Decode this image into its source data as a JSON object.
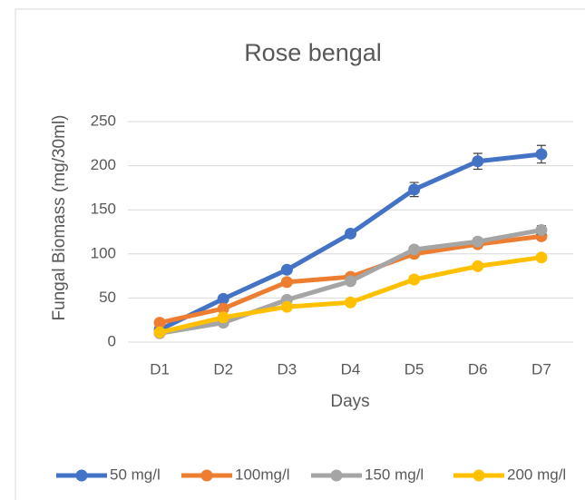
{
  "chart_data": {
    "type": "line",
    "title": "Rose bengal",
    "x_label": "Days",
    "y_label": "Fungal Biomass (mg/30ml)",
    "categories": [
      "D1",
      "D2",
      "D3",
      "D4",
      "D5",
      "D6",
      "D7"
    ],
    "series": [
      {
        "name": "50 mg/l",
        "color": "#4472c4",
        "values": [
          14,
          49,
          82,
          123,
          173,
          205,
          213
        ],
        "errors": [
          2,
          3,
          3,
          4,
          8,
          9,
          10
        ]
      },
      {
        "name": "100mg/l",
        "color": "#ed7d31",
        "values": [
          22,
          38,
          68,
          74,
          100,
          111,
          120
        ],
        "errors": [
          2,
          2,
          3,
          3,
          3,
          4,
          4
        ]
      },
      {
        "name": "150 mg/l",
        "color": "#a5a5a5",
        "values": [
          10,
          22,
          48,
          69,
          105,
          114,
          127
        ],
        "errors": [
          2,
          2,
          3,
          3,
          3,
          4,
          5
        ]
      },
      {
        "name": "200 mg/l",
        "color": "#ffc000",
        "values": [
          11,
          28,
          40,
          45,
          71,
          86,
          96
        ],
        "errors": [
          2,
          2,
          2,
          2,
          3,
          3,
          3
        ]
      }
    ],
    "ylim": [
      0,
      250
    ],
    "yticks": [
      0,
      50,
      100,
      150,
      200,
      250
    ],
    "grid": true,
    "legend": "bottom"
  }
}
